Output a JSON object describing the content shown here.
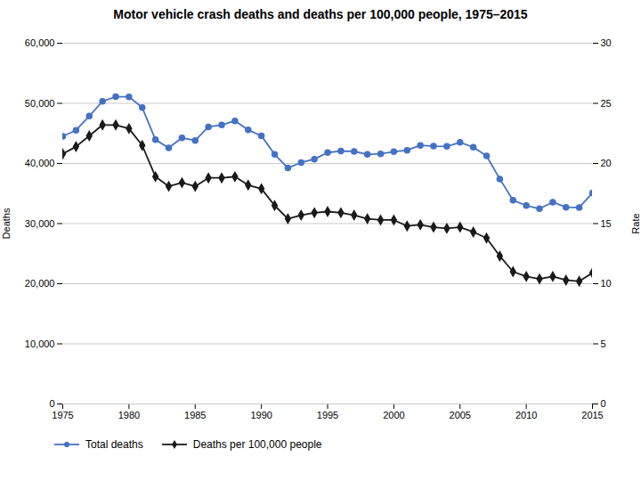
{
  "chart_data": {
    "type": "line",
    "title": "Motor vehicle crash deaths and deaths per 100,000 people, 1975–2015",
    "ylabel": "Deaths",
    "y2label": "Rate",
    "x": [
      1975,
      1976,
      1977,
      1978,
      1979,
      1980,
      1981,
      1982,
      1983,
      1984,
      1985,
      1986,
      1987,
      1988,
      1989,
      1990,
      1991,
      1992,
      1993,
      1994,
      1995,
      1996,
      1997,
      1998,
      1999,
      2000,
      2001,
      2002,
      2003,
      2004,
      2005,
      2006,
      2007,
      2008,
      2009,
      2010,
      2011,
      2012,
      2013,
      2014,
      2015
    ],
    "series": [
      {
        "name": "Total deaths",
        "color": "#4472c4",
        "marker": "circle",
        "values": [
          44525,
          45523,
          47878,
          50331,
          51093,
          51091,
          49301,
          43945,
          42589,
          44257,
          43825,
          46087,
          46390,
          47087,
          45582,
          44599,
          41508,
          39250,
          40150,
          40716,
          41817,
          42065,
          42013,
          41501,
          41611,
          41945,
          42196,
          43005,
          42884,
          42836,
          43510,
          42708,
          41259,
          37423,
          33883,
          32999,
          32479,
          33561,
          32719,
          32675,
          35092
        ]
      },
      {
        "name": "Deaths per 100,000 people",
        "color": "#1a1a1a",
        "marker": "diamond",
        "axis": "y2",
        "values": [
          20.8,
          21.4,
          22.3,
          23.2,
          23.2,
          22.9,
          21.5,
          18.9,
          18.1,
          18.4,
          18.1,
          18.8,
          18.8,
          18.9,
          18.2,
          17.9,
          16.5,
          15.4,
          15.7,
          15.9,
          16.0,
          15.9,
          15.7,
          15.4,
          15.3,
          15.3,
          14.8,
          14.9,
          14.7,
          14.6,
          14.7,
          14.3,
          13.8,
          12.3,
          11.0,
          10.6,
          10.4,
          10.6,
          10.3,
          10.2,
          10.9
        ]
      }
    ],
    "xlim": [
      1975,
      2015
    ],
    "xticks": [
      1975,
      1980,
      1985,
      1990,
      1995,
      2000,
      2005,
      2010,
      2015
    ],
    "ylim": [
      0,
      60000
    ],
    "yticks": [
      0,
      {
        "value": 10000,
        "label": "10,000"
      },
      {
        "value": 20000,
        "label": "20,000"
      },
      {
        "value": 30000,
        "label": "30,000"
      },
      {
        "value": 40000,
        "label": "40,000"
      },
      {
        "value": 50000,
        "label": "50,000"
      },
      {
        "value": 60000,
        "label": "60,000"
      }
    ],
    "y2lim": [
      0,
      30
    ],
    "y2ticks": [
      0,
      5,
      10,
      15,
      20,
      25,
      30
    ],
    "grid": true,
    "legend": "lower left"
  }
}
